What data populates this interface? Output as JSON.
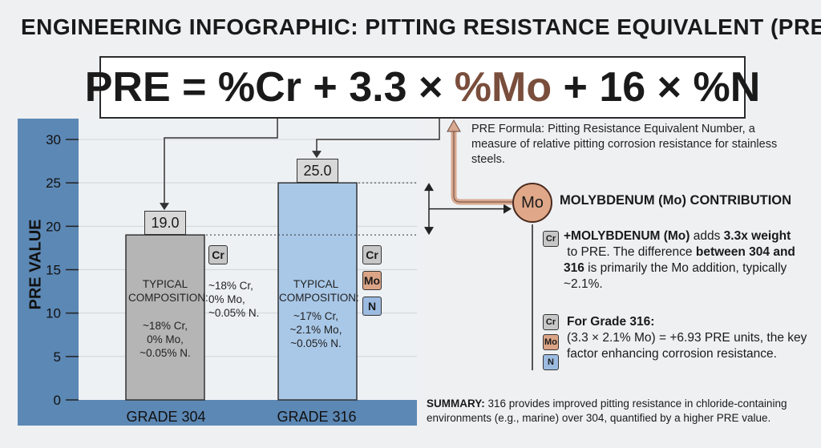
{
  "title": "ENGINEERING INFOGRAPHIC: PITTING RESISTANCE EQUIVALENT (PRE)",
  "formula": {
    "part1": "PRE = %Cr + 3.3 × ",
    "mo": "%Mo",
    "part2": " + 16 × %N",
    "description": "PRE Formula: Pitting Resistance Equivalent Number, a measure of relative pitting corrosion resistance for stainless steels."
  },
  "chart_data": {
    "type": "bar",
    "categories": [
      "GRADE 304",
      "GRADE 316"
    ],
    "values": [
      19.0,
      25.0
    ],
    "value_labels": [
      "19.0",
      "25.0"
    ],
    "ylabel": "PRE VALUE",
    "ylim": [
      0,
      30
    ],
    "yticks": [
      "0",
      "5",
      "10",
      "15",
      "20",
      "25",
      "30"
    ],
    "colors": [
      "#b5b5b5",
      "#a9c8e8"
    ]
  },
  "bars": [
    {
      "composition_label": "TYPICAL COMPOSITION:",
      "composition": [
        "~18% Cr,",
        "0% Mo,",
        "~0.05% N."
      ],
      "side_composition": [
        "~18% Cr,",
        "0% Mo,",
        "~0.05% N."
      ],
      "elements": [
        "Cr"
      ]
    },
    {
      "composition_label": "TYPICAL COMPOSITION:",
      "composition": [
        "~17% Cr,",
        "~2.1% Mo,",
        "~0.05% N."
      ],
      "elements": [
        "Cr",
        "Mo",
        "N"
      ]
    }
  ],
  "molybdenum": {
    "symbol": "Mo",
    "title": "MOLYBDENUM (Mo) CONTRIBUTION",
    "p1_bold": "+MOLYBDENUM (Mo)",
    "p1_a": " adds ",
    "p1_bold2": "3.3x weight",
    "p1_b": " to PRE. The difference ",
    "p1_bold3": "between 304 and 316",
    "p1_c": " is primarily the Mo addition, typically ~2.1%.",
    "p2_title": "For Grade 316:",
    "p2_text": "(3.3 × 2.1% Mo) = +6.93 PRE units, the key factor enhancing corrosion resistance.",
    "chips": [
      "Cr",
      "Mo",
      "N"
    ]
  },
  "summary": {
    "label": "SUMMARY:",
    "text": " 316 provides improved pitting resistance in chloride-containing environments (e.g., marine) over 304, quantified by a higher PRE value."
  },
  "colors": {
    "axis_band": "#5c88b5",
    "grid": "#cfd5db",
    "arrow_mo": "#d8a890"
  }
}
